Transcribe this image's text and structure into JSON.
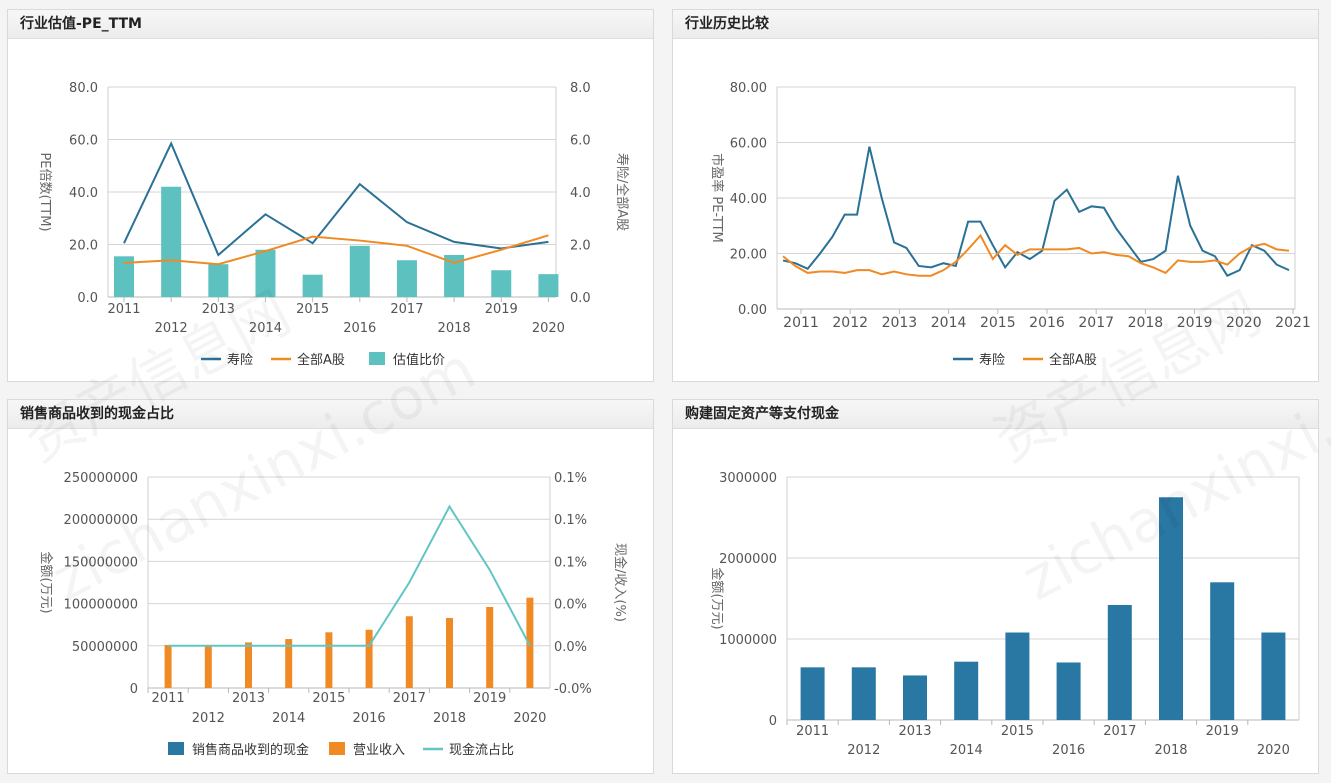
{
  "panels": [
    {
      "title": "行业估值-PE_TTM"
    },
    {
      "title": "行业历史比较"
    },
    {
      "title": "销售商品收到的现金占比"
    },
    {
      "title": "购建固定资产等支付现金"
    }
  ],
  "watermark": {
    "line1": "资产信息网",
    "line2": "zichanxinxi.com"
  },
  "colors": {
    "teal_dark": "#2a7196",
    "orange": "#f08a24",
    "teal_light": "#5cc1bf",
    "bar_blue": "#2977a3",
    "line_aqua": "#62c5c5"
  },
  "chart_data": [
    {
      "type": "bar",
      "categories": [
        "2011",
        "2012",
        "2013",
        "2014",
        "2015",
        "2016",
        "2017",
        "2018",
        "2019",
        "2020"
      ],
      "series": [
        {
          "name": "寿险",
          "kind": "line",
          "axis": "left",
          "color": "#2a7196",
          "values": [
            20.5,
            58.5,
            16.0,
            31.5,
            20.5,
            43.0,
            28.5,
            21.0,
            18.5,
            21.0
          ]
        },
        {
          "name": "全部A股",
          "kind": "line",
          "axis": "left",
          "color": "#f08a24",
          "values": [
            13.0,
            14.0,
            12.5,
            17.5,
            23.0,
            21.5,
            19.5,
            13.0,
            18.0,
            23.5
          ]
        },
        {
          "name": "估值比价",
          "kind": "bar",
          "axis": "right",
          "color": "#5cc1bf",
          "values": [
            1.55,
            4.2,
            1.25,
            1.8,
            0.85,
            1.95,
            1.4,
            1.6,
            1.02,
            0.87
          ]
        }
      ],
      "ylabel": "PE倍数(TTM)",
      "y2label": "寿险/全部A股",
      "ylim": [
        0,
        80
      ],
      "y2lim": [
        0,
        8
      ],
      "yticks": [
        "0.0",
        "20.0",
        "40.0",
        "60.0",
        "80.0"
      ],
      "y2ticks": [
        "0.0",
        "2.0",
        "4.0",
        "6.0",
        "8.0"
      ],
      "legend": "bottom"
    },
    {
      "type": "line",
      "xticks": [
        "2011",
        "2012",
        "2013",
        "2014",
        "2015",
        "2016",
        "2017",
        "2018",
        "2019",
        "2020",
        "2021"
      ],
      "series": [
        {
          "name": "寿险",
          "color": "#2a7196",
          "values": [
            17.5,
            16.5,
            14.5,
            20.0,
            26.0,
            34.0,
            34.0,
            58.5,
            40.0,
            24.0,
            22.0,
            15.5,
            15.0,
            16.5,
            15.5,
            31.5,
            31.5,
            23.0,
            15.0,
            20.5,
            18.0,
            21.0,
            39.0,
            43.0,
            35.0,
            37.0,
            36.5,
            29.0,
            23.0,
            17.0,
            18.0,
            21.0,
            48.0,
            30.0,
            21.0,
            19.0,
            12.0,
            14.0,
            23.0,
            21.0,
            16.0,
            14.0
          ]
        },
        {
          "name": "全部A股",
          "color": "#f08a24",
          "values": [
            19.0,
            15.5,
            13.0,
            13.5,
            13.5,
            13.0,
            14.0,
            14.0,
            12.5,
            13.5,
            12.5,
            12.0,
            12.0,
            14.0,
            17.0,
            21.5,
            26.5,
            18.0,
            23.0,
            19.5,
            21.5,
            21.5,
            21.5,
            21.5,
            22.0,
            20.0,
            20.5,
            19.5,
            19.0,
            16.5,
            15.0,
            13.0,
            17.5,
            17.0,
            17.0,
            17.5,
            16.0,
            20.0,
            22.5,
            23.5,
            21.5,
            21.0
          ]
        }
      ],
      "ylabel": "市盈率 PE-TTM",
      "ylim": [
        0,
        80
      ],
      "yticks": [
        "0.00",
        "20.00",
        "40.00",
        "60.00",
        "80.00"
      ],
      "legend": "bottom"
    },
    {
      "type": "bar",
      "categories": [
        "2011",
        "2012",
        "2013",
        "2014",
        "2015",
        "2016",
        "2017",
        "2018",
        "2019",
        "2020"
      ],
      "series": [
        {
          "name": "销售商品收到的现金",
          "kind": "bar",
          "axis": "left",
          "color": "#2977a3",
          "values": [
            0,
            0,
            0,
            0,
            0,
            0,
            0,
            0,
            0,
            0
          ]
        },
        {
          "name": "营业收入",
          "kind": "bar",
          "axis": "left",
          "color": "#f08a24",
          "values": [
            51000000,
            51000000,
            54000000,
            58000000,
            66000000,
            69000000,
            85000000,
            83000000,
            96000000,
            107000000
          ]
        },
        {
          "name": "现金流占比",
          "kind": "line",
          "axis": "right",
          "color": "#62c5c5",
          "values": [
            0,
            0,
            0,
            0,
            0,
            0,
            0.0005,
            0.0011,
            0.0006,
            0
          ]
        }
      ],
      "ylabel": "金额(万元)",
      "y2label": "现金/收入(%)",
      "ylim": [
        0,
        250000000
      ],
      "yticks": [
        "0",
        "50000000",
        "100000000",
        "150000000",
        "200000000",
        "250000000"
      ],
      "y2ticks": [
        "-0.0%",
        "0.0%",
        "0.0%",
        "0.1%",
        "0.1%",
        "0.1%"
      ],
      "legend": "bottom"
    },
    {
      "type": "bar",
      "categories": [
        "2011",
        "2012",
        "2013",
        "2014",
        "2015",
        "2016",
        "2017",
        "2018",
        "2019",
        "2020"
      ],
      "series": [
        {
          "name": "",
          "color": "#2977a3",
          "values": [
            650000,
            650000,
            550000,
            720000,
            1080000,
            710000,
            1420000,
            2750000,
            1700000,
            1080000
          ]
        }
      ],
      "ylabel": "金额(万元)",
      "ylim": [
        0,
        3000000
      ],
      "yticks": [
        "0",
        "1000000",
        "2000000",
        "3000000"
      ],
      "legend": "none"
    }
  ]
}
